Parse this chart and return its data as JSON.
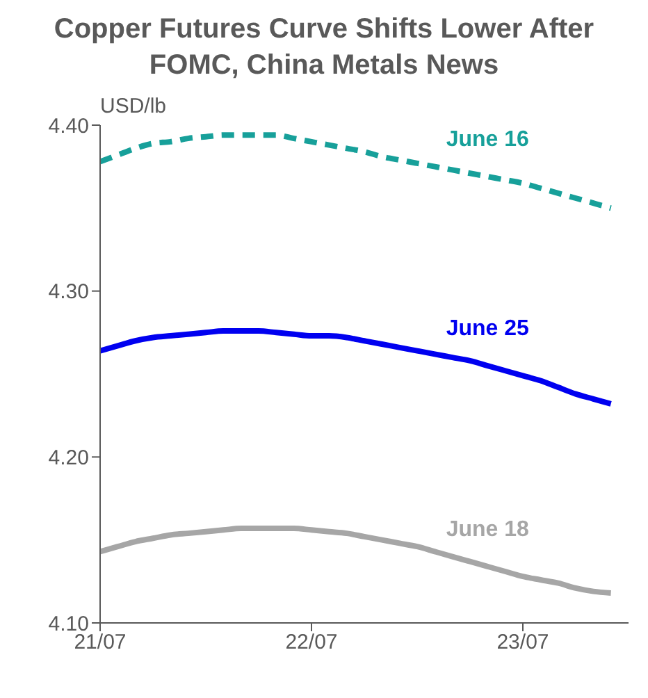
{
  "chart_data": {
    "type": "line",
    "title": "Copper Futures Curve Shifts Lower After FOMC, China Metals News",
    "ylabel": "USD/lb",
    "categories": [
      "21/07",
      null,
      null,
      null,
      null,
      null,
      null,
      null,
      null,
      null,
      null,
      null,
      "22/07",
      null,
      null,
      null,
      null,
      null,
      null,
      null,
      null,
      null,
      null,
      null,
      "23/07",
      null,
      null,
      null,
      null,
      null
    ],
    "series": [
      {
        "name": "June 16",
        "color": "#17a09a",
        "line_style": "dashed",
        "values": [
          4.378,
          4.382,
          4.386,
          4.389,
          4.39,
          4.392,
          4.393,
          4.394,
          4.394,
          4.394,
          4.394,
          4.392,
          4.39,
          4.388,
          4.386,
          4.384,
          4.381,
          4.379,
          4.377,
          4.375,
          4.373,
          4.371,
          4.369,
          4.367,
          4.365,
          4.362,
          4.359,
          4.356,
          4.353,
          4.35
        ]
      },
      {
        "name": "June 25",
        "color": "#0000f0",
        "line_style": "solid",
        "values": [
          4.264,
          4.267,
          4.27,
          4.272,
          4.273,
          4.274,
          4.275,
          4.276,
          4.276,
          4.276,
          4.275,
          4.274,
          4.273,
          4.273,
          4.272,
          4.27,
          4.268,
          4.266,
          4.264,
          4.262,
          4.26,
          4.258,
          4.255,
          4.252,
          4.249,
          4.246,
          4.242,
          4.238,
          4.235,
          4.232
        ]
      },
      {
        "name": "June 18",
        "color": "#a6a6a6",
        "line_style": "solid",
        "values": [
          4.143,
          4.146,
          4.149,
          4.151,
          4.153,
          4.154,
          4.155,
          4.156,
          4.157,
          4.157,
          4.157,
          4.157,
          4.156,
          4.155,
          4.154,
          4.152,
          4.15,
          4.148,
          4.146,
          4.143,
          4.14,
          4.137,
          4.134,
          4.131,
          4.128,
          4.126,
          4.124,
          4.121,
          4.119,
          4.118
        ]
      }
    ],
    "ylim": [
      4.1,
      4.4
    ],
    "yticks": [
      {
        "value": 4.1,
        "label": "4.10"
      },
      {
        "value": 4.2,
        "label": "4.20"
      },
      {
        "value": 4.3,
        "label": "4.30"
      },
      {
        "value": 4.4,
        "label": "4.40"
      }
    ],
    "grid": false,
    "legend": false,
    "marker": "none"
  }
}
